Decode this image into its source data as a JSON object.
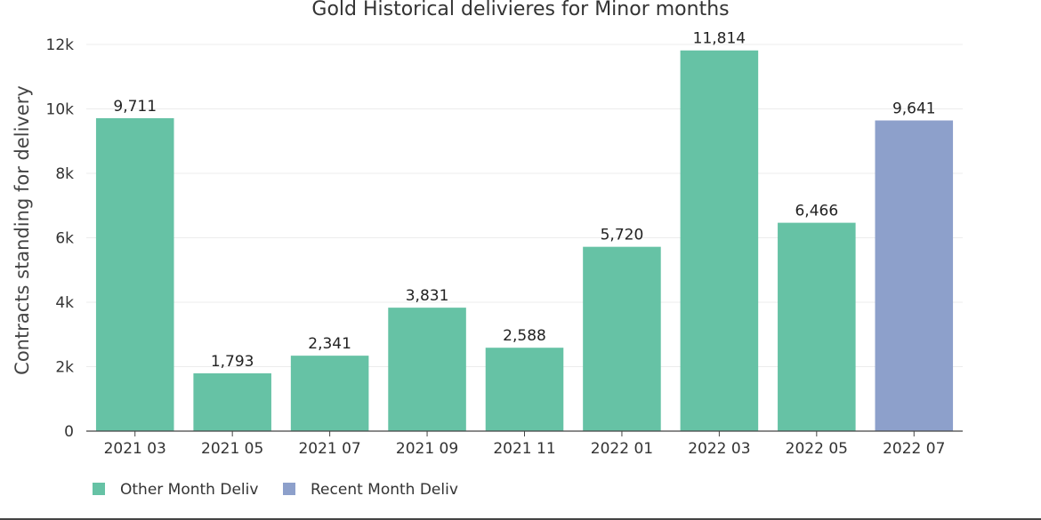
{
  "chart_data": {
    "type": "bar",
    "title": "Gold Historical delivieres for Minor months",
    "xlabel": "",
    "ylabel": "Contracts standing for delivery",
    "ylim": [
      0,
      12000
    ],
    "yticks": [
      0,
      2000,
      4000,
      6000,
      8000,
      10000,
      12000
    ],
    "ytick_labels": [
      "0",
      "2k",
      "4k",
      "6k",
      "8k",
      "10k",
      "12k"
    ],
    "categories": [
      "2021 03",
      "2021 05",
      "2021 07",
      "2021 09",
      "2021 11",
      "2022 01",
      "2022 03",
      "2022 05",
      "2022 07"
    ],
    "values": [
      9711,
      1793,
      2341,
      3831,
      2588,
      5720,
      11814,
      6466,
      9641
    ],
    "value_labels": [
      "9,711",
      "1,793",
      "2,341",
      "3,831",
      "2,588",
      "5,720",
      "11,814",
      "6,466",
      "9,641"
    ],
    "bar_groups": [
      "Other Month Deliv",
      "Other Month Deliv",
      "Other Month Deliv",
      "Other Month Deliv",
      "Other Month Deliv",
      "Other Month Deliv",
      "Other Month Deliv",
      "Other Month Deliv",
      "Recent Month Deliv"
    ],
    "legend": {
      "placement": "bottom-left",
      "entries": [
        {
          "name": "Other Month Deliv",
          "color": "#66c2a5"
        },
        {
          "name": "Recent Month Deliv",
          "color": "#8da0cb"
        }
      ]
    },
    "grid": true
  }
}
